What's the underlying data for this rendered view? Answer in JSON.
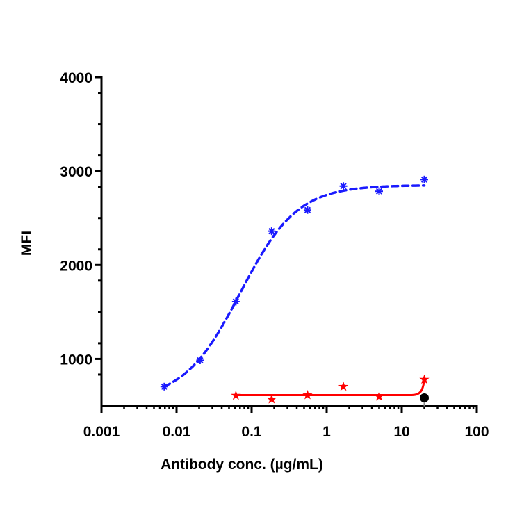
{
  "chart_data": {
    "type": "scatter",
    "title": "",
    "xlabel": "Antibody conc. (µg/mL)",
    "ylabel": "MFI",
    "xscale": "log",
    "xlim": [
      0.001,
      100
    ],
    "ylim": [
      500,
      4000
    ],
    "x_ticks": [
      "0.001",
      "0.01",
      "0.1",
      "1",
      "10",
      "100"
    ],
    "y_ticks": [
      "1000",
      "2000",
      "3000",
      "4000"
    ],
    "grid": false,
    "legend": "none",
    "series": [
      {
        "name": "blue",
        "color": "#1a1aff",
        "marker": "asterisk",
        "line": "dashed 4PL fit",
        "x": [
          0.00686,
          0.0206,
          0.0617,
          0.185,
          0.556,
          1.67,
          5,
          20
        ],
        "y": [
          705,
          985,
          1610,
          2360,
          2585,
          2840,
          2785,
          2910
        ],
        "fit": {
          "bottom": 560,
          "top": 2850,
          "logEC50": -1.15,
          "hill": 1.15
        }
      },
      {
        "name": "red",
        "color": "#ff0000",
        "marker": "star",
        "line": "solid fit",
        "x": [
          0.0617,
          0.185,
          0.556,
          1.67,
          5,
          20
        ],
        "y": [
          610,
          570,
          615,
          705,
          600,
          780
        ]
      },
      {
        "name": "black",
        "color": "#000000",
        "marker": "filled-circle",
        "line": "none",
        "x": [
          20
        ],
        "y": [
          585
        ]
      }
    ]
  }
}
